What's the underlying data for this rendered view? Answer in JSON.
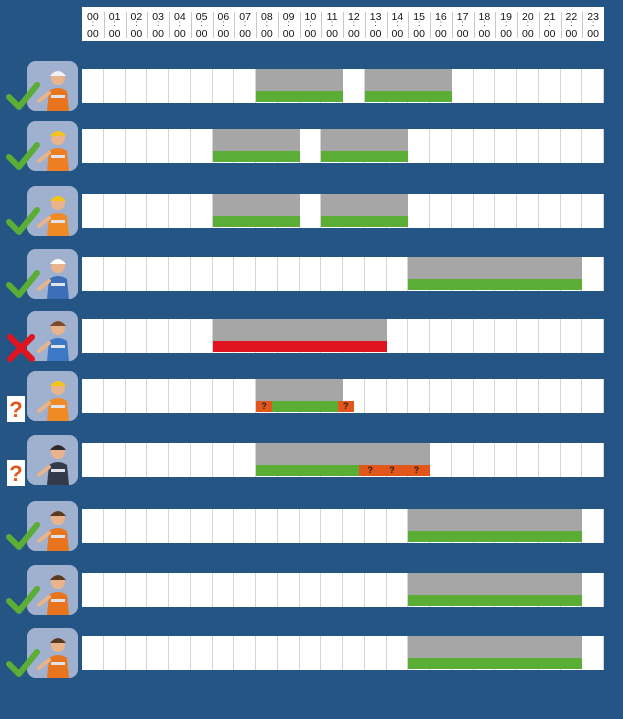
{
  "hours": [
    {
      "h": "00",
      "m": "00"
    },
    {
      "h": "01",
      "m": "00"
    },
    {
      "h": "02",
      "m": "00"
    },
    {
      "h": "03",
      "m": "00"
    },
    {
      "h": "04",
      "m": "00"
    },
    {
      "h": "05",
      "m": "00"
    },
    {
      "h": "06",
      "m": "00"
    },
    {
      "h": "07",
      "m": "00"
    },
    {
      "h": "08",
      "m": "00"
    },
    {
      "h": "09",
      "m": "00"
    },
    {
      "h": "10",
      "m": "00"
    },
    {
      "h": "11",
      "m": "00"
    },
    {
      "h": "12",
      "m": "00"
    },
    {
      "h": "13",
      "m": "00"
    },
    {
      "h": "14",
      "m": "00"
    },
    {
      "h": "15",
      "m": "00"
    },
    {
      "h": "16",
      "m": "00"
    },
    {
      "h": "17",
      "m": "00"
    },
    {
      "h": "18",
      "m": "00"
    },
    {
      "h": "19",
      "m": "00"
    },
    {
      "h": "20",
      "m": "00"
    },
    {
      "h": "21",
      "m": "00"
    },
    {
      "h": "22",
      "m": "00"
    },
    {
      "h": "23",
      "m": "00"
    }
  ],
  "colors": {
    "background": "#245584",
    "planned": "#a6a6a6",
    "present": "#5aad35",
    "absent": "#e0141e",
    "unknown": "#e2561c",
    "check": "#5aad35",
    "cross": "#e0141e",
    "question": "#e2561c"
  },
  "workers": [
    {
      "status": "check",
      "icon": "worker-phone-icon",
      "planned": [
        [
          8,
          12
        ],
        [
          13,
          17
        ]
      ],
      "actual": [
        [
          8,
          12
        ],
        [
          13,
          17
        ]
      ],
      "unknown": []
    },
    {
      "status": "check",
      "icon": "worker-carrying-box-icon",
      "planned": [
        [
          6,
          10
        ],
        [
          11,
          15
        ]
      ],
      "actual": [
        [
          6,
          10
        ],
        [
          11,
          15
        ]
      ],
      "unknown": []
    },
    {
      "status": "check",
      "icon": "worker-sawing-icon",
      "planned": [
        [
          6,
          10
        ],
        [
          11,
          15
        ]
      ],
      "actual": [
        [
          6,
          10
        ],
        [
          11,
          15
        ]
      ],
      "unknown": []
    },
    {
      "status": "check",
      "icon": "worker-welding-icon",
      "planned": [
        [
          15,
          23
        ]
      ],
      "actual": [
        [
          15,
          23
        ]
      ],
      "unknown": []
    },
    {
      "status": "cross",
      "icon": "worker-kneeling-icon",
      "planned": [
        [
          6,
          14
        ]
      ],
      "actual": [
        [
          6,
          14
        ]
      ],
      "unknown": []
    },
    {
      "status": "question",
      "icon": "worker-arms-crossed-icon",
      "planned": [
        [
          8,
          12
        ]
      ],
      "actual": [
        [
          8.75,
          11.75
        ]
      ],
      "unknown": [
        [
          8,
          8.75,
          "?"
        ],
        [
          11.75,
          12.5,
          "?"
        ]
      ]
    },
    {
      "status": "question",
      "icon": "worker-welder-mask-icon",
      "planned": [
        [
          8,
          16
        ]
      ],
      "actual": [
        [
          8,
          12.75
        ]
      ],
      "unknown": [
        [
          12.75,
          13.75,
          "?"
        ],
        [
          13.75,
          14.75,
          "?"
        ],
        [
          14.75,
          16,
          "?"
        ]
      ]
    },
    {
      "status": "check",
      "icon": "worker-drilling-icon",
      "planned": [
        [
          15,
          23
        ]
      ],
      "actual": [
        [
          15,
          23
        ]
      ],
      "unknown": []
    },
    {
      "status": "check",
      "icon": "worker-lifting-box-icon",
      "planned": [
        [
          15,
          23
        ]
      ],
      "actual": [
        [
          15,
          23
        ]
      ],
      "unknown": []
    },
    {
      "status": "check",
      "icon": "worker-painting-icon",
      "planned": [
        [
          15,
          23
        ]
      ],
      "actual": [
        [
          15,
          23
        ]
      ],
      "unknown": []
    }
  ]
}
